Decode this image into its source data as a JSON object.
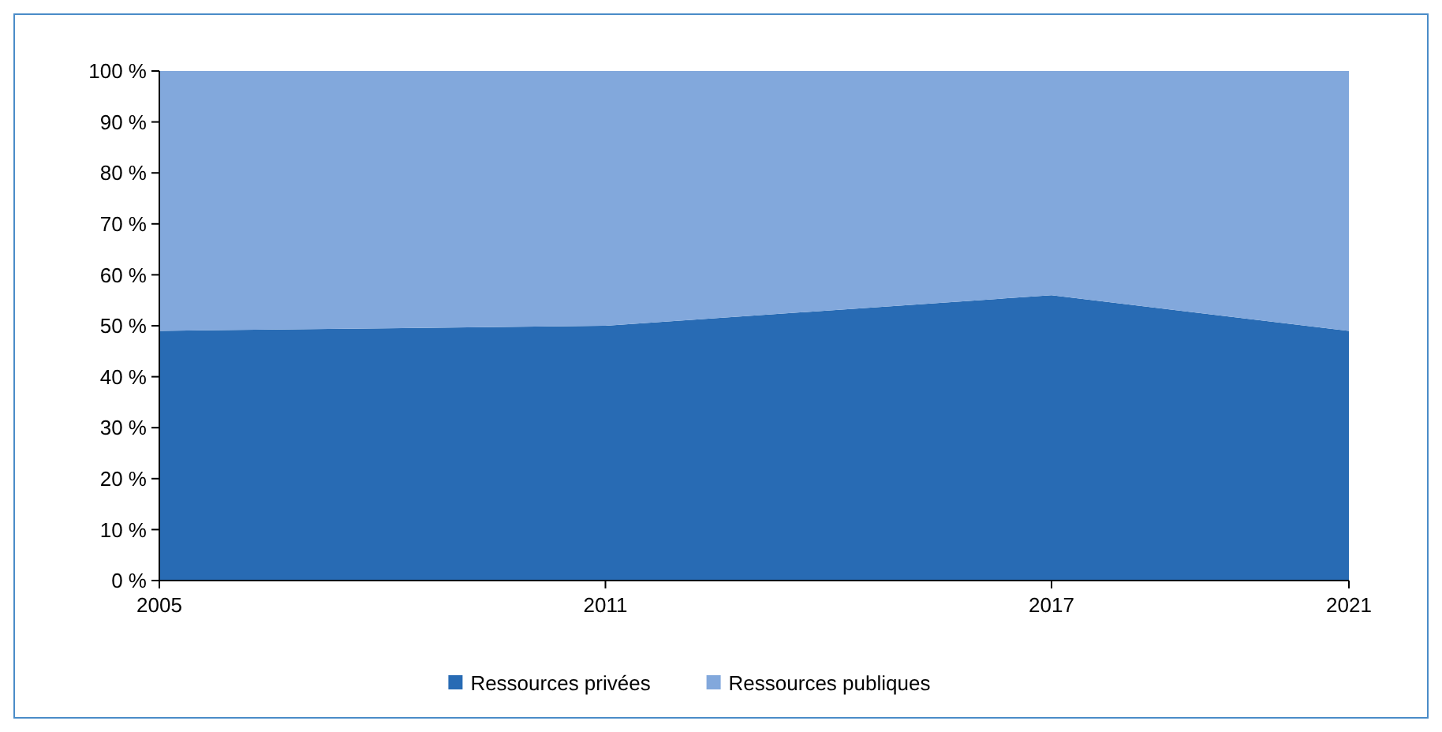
{
  "chart_data": {
    "type": "area",
    "stacked": true,
    "x": [
      2005,
      2011,
      2017,
      2021
    ],
    "xlim": [
      2005,
      2021
    ],
    "xticks": [
      2005,
      2011,
      2017,
      2021
    ],
    "ylim": [
      0,
      100
    ],
    "yticks": [
      {
        "value": 0,
        "label": "0 %"
      },
      {
        "value": 10,
        "label": "10 %"
      },
      {
        "value": 20,
        "label": "20 %"
      },
      {
        "value": 30,
        "label": "30 %"
      },
      {
        "value": 40,
        "label": "40 %"
      },
      {
        "value": 50,
        "label": "50 %"
      },
      {
        "value": 60,
        "label": "60 %"
      },
      {
        "value": 70,
        "label": "70 %"
      },
      {
        "value": 80,
        "label": "80 %"
      },
      {
        "value": 90,
        "label": "90 %"
      },
      {
        "value": 100,
        "label": "100 %"
      }
    ],
    "series": [
      {
        "name": "Ressources privées",
        "color": "#286bb4",
        "values": [
          49,
          50,
          56,
          49
        ]
      },
      {
        "name": "Ressources publiques",
        "color": "#82a8dc",
        "values": [
          51,
          50,
          44,
          51
        ]
      }
    ],
    "legend": "bottom"
  }
}
